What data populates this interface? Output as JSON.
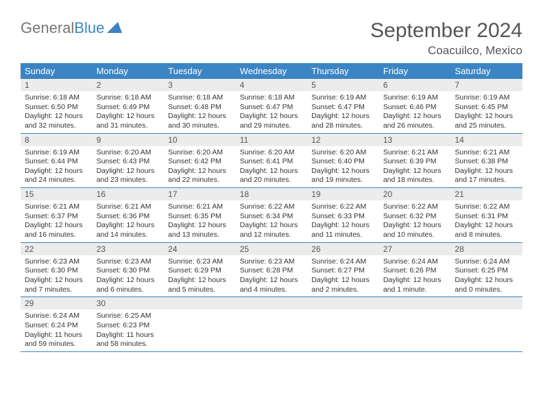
{
  "logo": {
    "text1": "General",
    "text2": "Blue"
  },
  "title": "September 2024",
  "location": "Coacuilco, Mexico",
  "colors": {
    "header_bg": "#3b85c4",
    "header_text": "#ffffff",
    "daynum_bg": "#ececec",
    "border": "#3b85c4",
    "text": "#333333",
    "logo_gray": "#777777",
    "logo_blue": "#3b85c4"
  },
  "dayNames": [
    "Sunday",
    "Monday",
    "Tuesday",
    "Wednesday",
    "Thursday",
    "Friday",
    "Saturday"
  ],
  "weeks": [
    [
      {
        "n": "1",
        "sr": "Sunrise: 6:18 AM",
        "ss": "Sunset: 6:50 PM",
        "dl": "Daylight: 12 hours and 32 minutes."
      },
      {
        "n": "2",
        "sr": "Sunrise: 6:18 AM",
        "ss": "Sunset: 6:49 PM",
        "dl": "Daylight: 12 hours and 31 minutes."
      },
      {
        "n": "3",
        "sr": "Sunrise: 6:18 AM",
        "ss": "Sunset: 6:48 PM",
        "dl": "Daylight: 12 hours and 30 minutes."
      },
      {
        "n": "4",
        "sr": "Sunrise: 6:18 AM",
        "ss": "Sunset: 6:47 PM",
        "dl": "Daylight: 12 hours and 29 minutes."
      },
      {
        "n": "5",
        "sr": "Sunrise: 6:19 AM",
        "ss": "Sunset: 6:47 PM",
        "dl": "Daylight: 12 hours and 28 minutes."
      },
      {
        "n": "6",
        "sr": "Sunrise: 6:19 AM",
        "ss": "Sunset: 6:46 PM",
        "dl": "Daylight: 12 hours and 26 minutes."
      },
      {
        "n": "7",
        "sr": "Sunrise: 6:19 AM",
        "ss": "Sunset: 6:45 PM",
        "dl": "Daylight: 12 hours and 25 minutes."
      }
    ],
    [
      {
        "n": "8",
        "sr": "Sunrise: 6:19 AM",
        "ss": "Sunset: 6:44 PM",
        "dl": "Daylight: 12 hours and 24 minutes."
      },
      {
        "n": "9",
        "sr": "Sunrise: 6:20 AM",
        "ss": "Sunset: 6:43 PM",
        "dl": "Daylight: 12 hours and 23 minutes."
      },
      {
        "n": "10",
        "sr": "Sunrise: 6:20 AM",
        "ss": "Sunset: 6:42 PM",
        "dl": "Daylight: 12 hours and 22 minutes."
      },
      {
        "n": "11",
        "sr": "Sunrise: 6:20 AM",
        "ss": "Sunset: 6:41 PM",
        "dl": "Daylight: 12 hours and 20 minutes."
      },
      {
        "n": "12",
        "sr": "Sunrise: 6:20 AM",
        "ss": "Sunset: 6:40 PM",
        "dl": "Daylight: 12 hours and 19 minutes."
      },
      {
        "n": "13",
        "sr": "Sunrise: 6:21 AM",
        "ss": "Sunset: 6:39 PM",
        "dl": "Daylight: 12 hours and 18 minutes."
      },
      {
        "n": "14",
        "sr": "Sunrise: 6:21 AM",
        "ss": "Sunset: 6:38 PM",
        "dl": "Daylight: 12 hours and 17 minutes."
      }
    ],
    [
      {
        "n": "15",
        "sr": "Sunrise: 6:21 AM",
        "ss": "Sunset: 6:37 PM",
        "dl": "Daylight: 12 hours and 16 minutes."
      },
      {
        "n": "16",
        "sr": "Sunrise: 6:21 AM",
        "ss": "Sunset: 6:36 PM",
        "dl": "Daylight: 12 hours and 14 minutes."
      },
      {
        "n": "17",
        "sr": "Sunrise: 6:21 AM",
        "ss": "Sunset: 6:35 PM",
        "dl": "Daylight: 12 hours and 13 minutes."
      },
      {
        "n": "18",
        "sr": "Sunrise: 6:22 AM",
        "ss": "Sunset: 6:34 PM",
        "dl": "Daylight: 12 hours and 12 minutes."
      },
      {
        "n": "19",
        "sr": "Sunrise: 6:22 AM",
        "ss": "Sunset: 6:33 PM",
        "dl": "Daylight: 12 hours and 11 minutes."
      },
      {
        "n": "20",
        "sr": "Sunrise: 6:22 AM",
        "ss": "Sunset: 6:32 PM",
        "dl": "Daylight: 12 hours and 10 minutes."
      },
      {
        "n": "21",
        "sr": "Sunrise: 6:22 AM",
        "ss": "Sunset: 6:31 PM",
        "dl": "Daylight: 12 hours and 8 minutes."
      }
    ],
    [
      {
        "n": "22",
        "sr": "Sunrise: 6:23 AM",
        "ss": "Sunset: 6:30 PM",
        "dl": "Daylight: 12 hours and 7 minutes."
      },
      {
        "n": "23",
        "sr": "Sunrise: 6:23 AM",
        "ss": "Sunset: 6:30 PM",
        "dl": "Daylight: 12 hours and 6 minutes."
      },
      {
        "n": "24",
        "sr": "Sunrise: 6:23 AM",
        "ss": "Sunset: 6:29 PM",
        "dl": "Daylight: 12 hours and 5 minutes."
      },
      {
        "n": "25",
        "sr": "Sunrise: 6:23 AM",
        "ss": "Sunset: 6:28 PM",
        "dl": "Daylight: 12 hours and 4 minutes."
      },
      {
        "n": "26",
        "sr": "Sunrise: 6:24 AM",
        "ss": "Sunset: 6:27 PM",
        "dl": "Daylight: 12 hours and 2 minutes."
      },
      {
        "n": "27",
        "sr": "Sunrise: 6:24 AM",
        "ss": "Sunset: 6:26 PM",
        "dl": "Daylight: 12 hours and 1 minute."
      },
      {
        "n": "28",
        "sr": "Sunrise: 6:24 AM",
        "ss": "Sunset: 6:25 PM",
        "dl": "Daylight: 12 hours and 0 minutes."
      }
    ],
    [
      {
        "n": "29",
        "sr": "Sunrise: 6:24 AM",
        "ss": "Sunset: 6:24 PM",
        "dl": "Daylight: 11 hours and 59 minutes."
      },
      {
        "n": "30",
        "sr": "Sunrise: 6:25 AM",
        "ss": "Sunset: 6:23 PM",
        "dl": "Daylight: 11 hours and 58 minutes."
      },
      {
        "n": "",
        "sr": "",
        "ss": "",
        "dl": ""
      },
      {
        "n": "",
        "sr": "",
        "ss": "",
        "dl": ""
      },
      {
        "n": "",
        "sr": "",
        "ss": "",
        "dl": ""
      },
      {
        "n": "",
        "sr": "",
        "ss": "",
        "dl": ""
      },
      {
        "n": "",
        "sr": "",
        "ss": "",
        "dl": ""
      }
    ]
  ]
}
